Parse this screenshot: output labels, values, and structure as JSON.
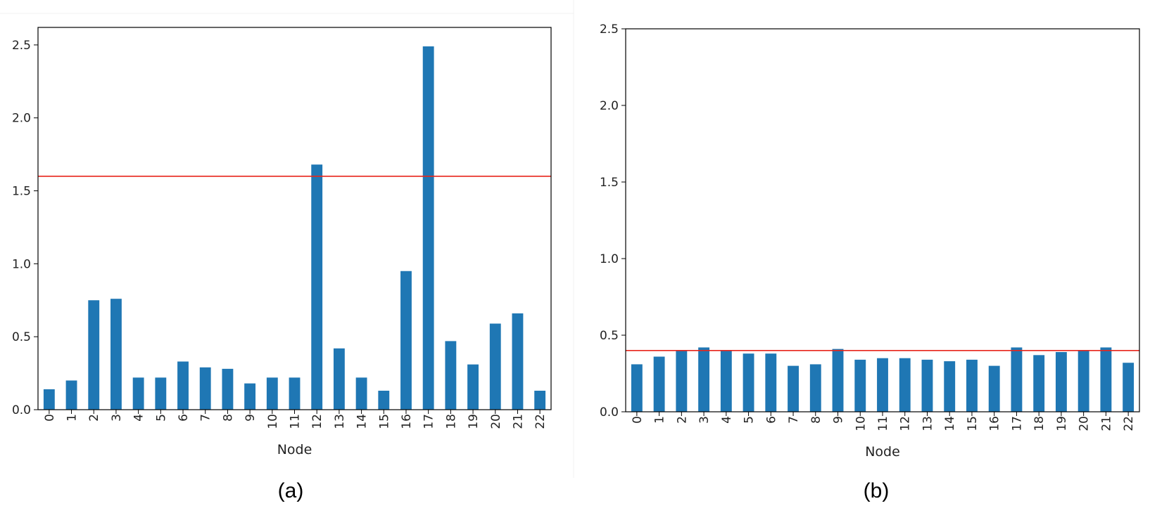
{
  "chart_data": [
    {
      "type": "bar",
      "caption": "(a)",
      "xlabel": "Node",
      "ylabel": "",
      "categories": [
        "0",
        "1",
        "2",
        "3",
        "4",
        "5",
        "6",
        "7",
        "8",
        "9",
        "10",
        "11",
        "12",
        "13",
        "14",
        "15",
        "16",
        "17",
        "18",
        "19",
        "20",
        "21",
        "22"
      ],
      "values": [
        0.14,
        0.2,
        0.75,
        0.76,
        0.22,
        0.22,
        0.33,
        0.29,
        0.28,
        0.18,
        0.22,
        0.22,
        1.68,
        0.42,
        0.22,
        0.13,
        0.95,
        2.49,
        0.47,
        0.31,
        0.59,
        0.66,
        0.13
      ],
      "yticks": [
        "0.0",
        "0.5",
        "1.0",
        "1.5",
        "2.0",
        "2.5"
      ],
      "ylim": [
        0,
        2.62
      ],
      "threshold": 1.6,
      "bar_color": "#1f77b4",
      "threshold_color": "#e8251b",
      "grid": false
    },
    {
      "type": "bar",
      "caption": "(b)",
      "xlabel": "Node",
      "ylabel": "",
      "categories": [
        "0",
        "1",
        "2",
        "3",
        "4",
        "5",
        "6",
        "7",
        "8",
        "9",
        "10",
        "11",
        "12",
        "13",
        "14",
        "15",
        "16",
        "17",
        "18",
        "19",
        "20",
        "21",
        "22"
      ],
      "values": [
        0.31,
        0.36,
        0.4,
        0.42,
        0.4,
        0.38,
        0.38,
        0.3,
        0.31,
        0.41,
        0.34,
        0.35,
        0.35,
        0.34,
        0.33,
        0.34,
        0.3,
        0.42,
        0.37,
        0.39,
        0.4,
        0.42,
        0.32
      ],
      "yticks": [
        "0.0",
        "0.5",
        "1.0",
        "1.5",
        "2.0",
        "2.5"
      ],
      "ylim": [
        0,
        2.5
      ],
      "threshold": 0.4,
      "bar_color": "#1f77b4",
      "threshold_color": "#e8251b",
      "grid": false
    }
  ]
}
